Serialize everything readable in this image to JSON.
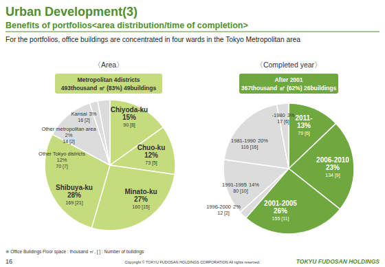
{
  "slide": {
    "title": "Urban Development(3)",
    "subtitle": "Benefits of portfolios<area distribution/time of completion>",
    "description": "For the portfolios, office buildings are concentrated in four wards in the Tokyo Metropolitan area",
    "footnote": "※ Office Buildings Floor space : thousand ㎡,  [ ] : Number of buildings",
    "page": 16,
    "copyright": "Copyright © TOKYU FUDOSAN HOLDINGS CORPORATION All rights reserved.",
    "logo": "TOKYU FUDOSAN HOLDINGS"
  },
  "chart_data": [
    {
      "type": "pie",
      "title": "〈Area〉",
      "summary": [
        "Metropolitan 4districts",
        "493thousand ㎡ (83%)  49buildings"
      ],
      "categories": [
        "Chiyoda-ku",
        "Chuo-ku",
        "Minato-ku",
        "Shibuya-ku",
        "Other Tokyo districts",
        "Other metropolitan area",
        "Kansai"
      ],
      "values": [
        15,
        12,
        27,
        28,
        12,
        2,
        3
      ],
      "value_labels": [
        "15%",
        "12%",
        "27%",
        "28%",
        "12%",
        "2%",
        "3%"
      ],
      "details": [
        "90 [8]",
        "73 [5]",
        "160 [15]",
        "169 [21]",
        "70 [7]",
        "14 [2]",
        "16 [2]"
      ],
      "colors": [
        "#c5dc7d",
        "#c5dc7d",
        "#c5dc7d",
        "#c5dc7d",
        "#dcdcdc",
        "#dcdcdc",
        "#dcdcdc"
      ],
      "data_labels": true
    },
    {
      "type": "pie",
      "title": "〈Completed year〉",
      "summary": [
        "After 2001",
        "367thousand ㎡ (62%)  26buildings"
      ],
      "categories": [
        "2011-",
        "2006-2010",
        "2001-2005",
        "1996-2000",
        "1991-1995",
        "1981-1990",
        "-1980"
      ],
      "values": [
        13,
        23,
        26,
        2,
        14,
        20,
        3
      ],
      "value_labels": [
        "13%",
        "23%",
        "26%",
        "2%",
        "14%",
        "20%",
        "3%"
      ],
      "details": [
        "79 [6]",
        "134 [9]",
        "155 [11]",
        "12 [2]",
        "80 [10]",
        "116 [16]",
        "17 [6]"
      ],
      "colors": [
        "#6fa83e",
        "#6fa83e",
        "#6fa83e",
        "#dcdcdc",
        "#dcdcdc",
        "#dcdcdc",
        "#dcdcdc"
      ],
      "data_labels": true
    }
  ]
}
